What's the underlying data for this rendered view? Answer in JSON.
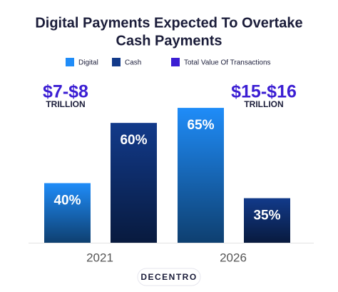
{
  "chart_data": {
    "type": "bar",
    "title": "Digital Payments Expected To Overtake",
    "subtitle": "Cash Payments",
    "categories": [
      "2021",
      "2026"
    ],
    "series": [
      {
        "name": "Digital",
        "color": "#1f8cf8",
        "values": [
          40,
          65
        ],
        "value_labels": [
          "40%",
          "65%"
        ]
      },
      {
        "name": "Cash",
        "color": "#123a8a",
        "values": [
          60,
          35
        ],
        "value_labels": [
          "60%",
          "35%"
        ]
      }
    ],
    "annotations": {
      "name": "Total Value Of Transactions",
      "color": "#3b1ed3",
      "items": [
        {
          "text": "$7-$8",
          "subtext": "TRILLION"
        },
        {
          "text": "$15-$16",
          "subtext": "TRILLION"
        }
      ]
    },
    "ylim": [
      20.2,
      70
    ]
  },
  "logo": "DECENTRO"
}
